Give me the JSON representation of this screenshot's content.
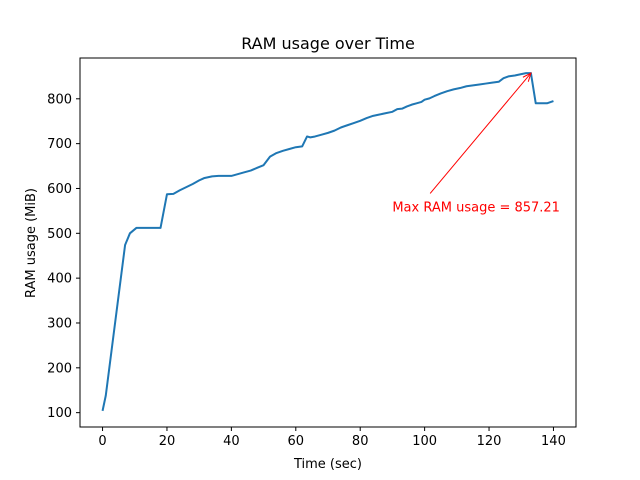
{
  "chart_data": {
    "type": "line",
    "title": "RAM usage over Time",
    "xlabel": "Time (sec)",
    "ylabel": "RAM usage (MiB)",
    "xlim": [
      -7,
      147
    ],
    "ylim": [
      68,
      891
    ],
    "xticks": [
      0,
      20,
      40,
      60,
      80,
      100,
      120,
      140
    ],
    "yticks": [
      100,
      200,
      300,
      400,
      500,
      600,
      700,
      800
    ],
    "grid": false,
    "series": [
      {
        "color": "#1f77b4",
        "x": [
          0,
          1,
          3,
          5,
          7,
          8.5,
          10.5,
          12,
          15,
          18,
          20,
          22,
          24,
          26,
          28,
          30,
          31.5,
          34,
          36,
          40,
          44,
          46,
          48,
          50,
          52,
          54,
          56,
          58,
          60,
          62,
          63.5,
          64.5,
          66,
          68,
          70,
          72,
          74,
          76,
          78,
          80,
          82,
          84,
          86,
          88,
          90,
          91.5,
          93,
          94.5,
          96,
          97.5,
          99,
          100,
          101.5,
          103,
          105,
          107,
          109,
          111,
          113,
          115,
          117,
          119,
          121,
          123,
          124.5,
          126,
          128,
          130,
          131.5,
          133,
          134.5,
          136,
          138,
          140
        ],
        "y": [
          104,
          138,
          250,
          362,
          474,
          500,
          512,
          512,
          512,
          512,
          587,
          588,
          596,
          603,
          610,
          618,
          623,
          627,
          628,
          628,
          636,
          640,
          646,
          652,
          671,
          679,
          684,
          688,
          692,
          694,
          716,
          714,
          716,
          720,
          724,
          729,
          736,
          741,
          746,
          751,
          757,
          762,
          765,
          768,
          771,
          777,
          778,
          783,
          787,
          790,
          793,
          798,
          801,
          806,
          812,
          817,
          821,
          824,
          828,
          830,
          832,
          834,
          836,
          838,
          846,
          850,
          852,
          855,
          857.21,
          857.21,
          790,
          790,
          790,
          795
        ]
      }
    ],
    "annotation": {
      "text": "Max RAM usage = 857.21",
      "color": "#ff0000",
      "point": [
        133,
        857.21
      ],
      "text_at": [
        116,
        560
      ]
    }
  }
}
